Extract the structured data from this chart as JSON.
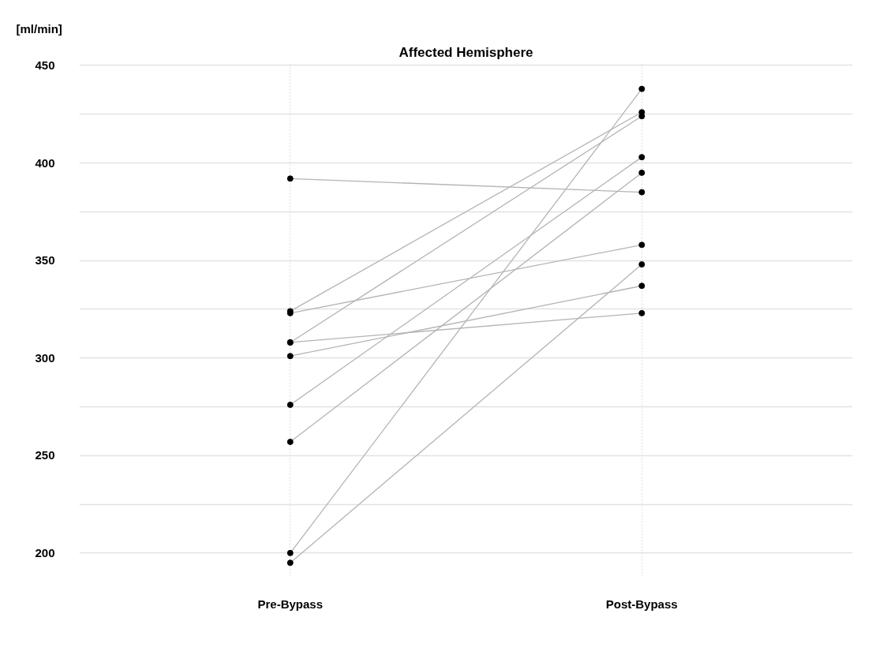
{
  "chart_data": {
    "type": "line",
    "title": "Affected Hemisphere",
    "ylabel": "[ml/min]",
    "categories": [
      "Pre-Bypass",
      "Post-Bypass"
    ],
    "ylim": [
      188,
      451
    ],
    "yticks": [
      200,
      {
        "value": 225,
        "label": null
      },
      250,
      {
        "value": 275,
        "label": null
      },
      300,
      {
        "value": 325,
        "label": null
      },
      350,
      {
        "value": 375,
        "label": null
      },
      400,
      {
        "value": 425,
        "label": null
      },
      450
    ],
    "grid": true,
    "marker": "circle",
    "line_style": "solid",
    "series": [
      {
        "color": "#b4b4b4",
        "colors": [
          "#000000",
          "#000000"
        ],
        "values": [
          392,
          385
        ]
      },
      {
        "color": "#b4b4b4",
        "colors": [
          "#000000",
          "#000000"
        ],
        "values": [
          324,
          426
        ]
      },
      {
        "color": "#b4b4b4",
        "colors": [
          "#000000",
          "#000000"
        ],
        "values": [
          323,
          358
        ]
      },
      {
        "color": "#b4b4b4",
        "colors": [
          "#000000",
          "#000000"
        ],
        "values": [
          308,
          424
        ]
      },
      {
        "color": "#b4b4b4",
        "colors": [
          "#000000",
          "#000000"
        ],
        "values": [
          308,
          323
        ]
      },
      {
        "color": "#b4b4b4",
        "colors": [
          "#000000",
          "#000000"
        ],
        "values": [
          301,
          337
        ]
      },
      {
        "color": "#b4b4b4",
        "colors": [
          "#000000",
          "#000000"
        ],
        "values": [
          276,
          403
        ]
      },
      {
        "color": "#b4b4b4",
        "colors": [
          "#000000",
          "#000000"
        ],
        "values": [
          257,
          395
        ]
      },
      {
        "color": "#b4b4b4",
        "colors": [
          "#000000",
          "#000000"
        ],
        "values": [
          200,
          438
        ]
      },
      {
        "color": "#b4b4b4",
        "colors": [
          "#000000",
          "#000000"
        ],
        "values": [
          195,
          348
        ]
      }
    ]
  }
}
